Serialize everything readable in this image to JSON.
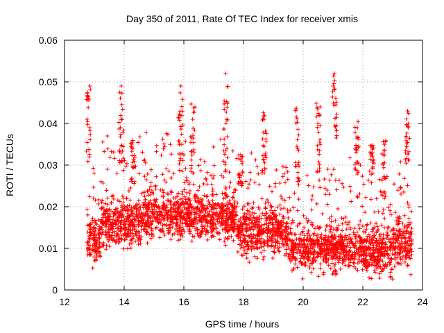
{
  "chart_data": {
    "type": "scatter",
    "title": "Day 350 of 2011, Rate Of TEC Index for receiver xmis",
    "xlabel": "GPS time / hours",
    "ylabel": "ROTI / TECUs",
    "xlim": [
      12,
      24
    ],
    "ylim": [
      0,
      0.06
    ],
    "xticks": [
      12,
      14,
      16,
      18,
      20,
      22,
      24
    ],
    "yticks": [
      0,
      0.01,
      0.02,
      0.03,
      0.04,
      0.05,
      0.06
    ],
    "xtick_labels": [
      "12",
      "14",
      "16",
      "18",
      "20",
      "22",
      "24"
    ],
    "ytick_labels": [
      "0",
      "0.01",
      "0.02",
      "0.03",
      "0.04",
      "0.05",
      "0.06"
    ],
    "grid": true,
    "marker": "+",
    "color": "#ff0000",
    "series": [
      {
        "name": "ROTI",
        "x_range": [
          12.75,
          23.65
        ],
        "point_count": 3000,
        "description_note": "dense scatter; baseline ~0.005-0.02 TECU, spikes up to ~0.052",
        "notable_peaks": [
          {
            "x": 12.85,
            "y": 0.049
          },
          {
            "x": 13.9,
            "y": 0.049
          },
          {
            "x": 15.9,
            "y": 0.049
          },
          {
            "x": 17.4,
            "y": 0.052
          },
          {
            "x": 21.05,
            "y": 0.052
          },
          {
            "x": 23.5,
            "y": 0.043
          }
        ]
      }
    ]
  }
}
